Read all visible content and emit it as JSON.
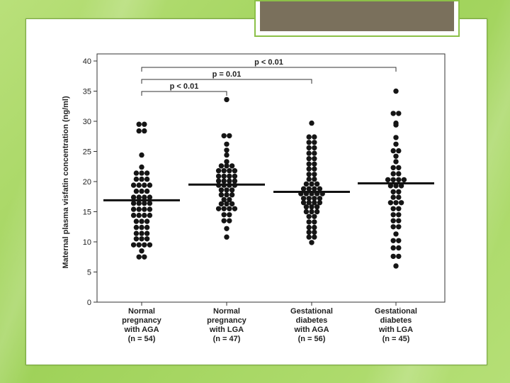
{
  "slide": {
    "background_color": "#a8d865",
    "title_box_color": "#7a705c"
  },
  "chart_data": {
    "type": "scatter",
    "subtype": "dot-plot with mean lines",
    "ylabel": "Maternal plasma visfatin concentration (ng/ml)",
    "ylim": [
      0,
      40
    ],
    "y_ticks": [
      "0",
      "5",
      "10",
      "15",
      "20",
      "25",
      "30",
      "35",
      "40"
    ],
    "grid": false,
    "categories": [
      {
        "lines": [
          "Normal",
          "pregnancy",
          "with AGA",
          "(n = 54)"
        ]
      },
      {
        "lines": [
          "Normal",
          "pregnancy",
          "with LGA",
          "(n = 47)"
        ]
      },
      {
        "lines": [
          "Gestational",
          "diabetes",
          "with AGA",
          "(n = 56)"
        ]
      },
      {
        "lines": [
          "Gestational",
          "diabetes",
          "with LGA",
          "(n = 45)"
        ]
      }
    ],
    "means": [
      16.9,
      19.5,
      18.3,
      19.7
    ],
    "groups": [
      [
        29.5,
        29.5,
        28.4,
        28.4,
        24.4,
        22.4,
        21.4,
        21.4,
        21.4,
        20.4,
        20.4,
        20.4,
        19.4,
        19.4,
        19.4,
        19.4,
        18.4,
        18.4,
        18.4,
        17.4,
        17.4,
        17.4,
        16.4,
        16.4,
        16.4,
        16.4,
        15.4,
        15.4,
        15.4,
        15.4,
        14.4,
        14.4,
        14.4,
        14.4,
        13.4,
        13.4,
        13.4,
        12.4,
        12.4,
        12.4,
        11.4,
        11.4,
        11.4,
        10.5,
        10.5,
        10.5,
        9.5,
        9.5,
        9.5,
        9.5,
        8.5,
        7.5,
        7.5,
        17.4
      ],
      [
        33.6,
        27.6,
        27.6,
        26.2,
        25.2,
        24.4,
        23.3,
        22.6,
        22.6,
        22.6,
        21.8,
        21.8,
        21.8,
        21.8,
        20.9,
        20.9,
        20.9,
        20.9,
        20.1,
        20.1,
        20.1,
        20.1,
        19.4,
        19.4,
        19.4,
        18.6,
        18.6,
        18.6,
        17.8,
        17.8,
        17.8,
        17.0,
        17.0,
        16.3,
        16.3,
        16.3,
        15.5,
        15.5,
        15.5,
        15.5,
        14.5,
        14.5,
        13.5,
        13.5,
        12.2,
        10.8,
        19.4
      ],
      [
        29.7,
        27.4,
        27.4,
        26.5,
        26.5,
        25.6,
        25.6,
        24.7,
        24.7,
        23.8,
        23.8,
        22.9,
        22.9,
        22.1,
        22.1,
        21.2,
        21.2,
        20.4,
        20.4,
        19.6,
        19.6,
        19.6,
        18.8,
        18.8,
        18.8,
        18.8,
        18.0,
        18.0,
        18.0,
        18.0,
        17.2,
        17.2,
        17.2,
        16.5,
        16.5,
        16.5,
        15.8,
        15.8,
        15.8,
        15.0,
        15.0,
        15.0,
        14.2,
        14.2,
        13.3,
        13.3,
        12.4,
        12.4,
        11.6,
        11.6,
        10.8,
        10.8,
        9.9,
        18.0,
        17.2,
        16.5
      ],
      [
        35.0,
        31.3,
        31.3,
        29.7,
        29.4,
        27.3,
        26.2,
        25.1,
        25.1,
        24.2,
        23.3,
        22.3,
        22.3,
        21.3,
        21.3,
        20.3,
        20.3,
        20.3,
        19.3,
        19.3,
        18.3,
        18.3,
        17.4,
        17.4,
        16.5,
        16.5,
        16.5,
        15.5,
        15.5,
        14.5,
        14.5,
        13.5,
        13.5,
        12.5,
        12.5,
        11.3,
        10.2,
        10.2,
        9.0,
        9.0,
        7.6,
        7.6,
        6.0,
        20.3,
        19.3
      ]
    ],
    "significance": [
      {
        "from": 0,
        "to": 3,
        "label": "p < 0.01"
      },
      {
        "from": 0,
        "to": 2,
        "label": "p = 0.01"
      },
      {
        "from": 0,
        "to": 1,
        "label": "p < 0.01"
      }
    ]
  }
}
